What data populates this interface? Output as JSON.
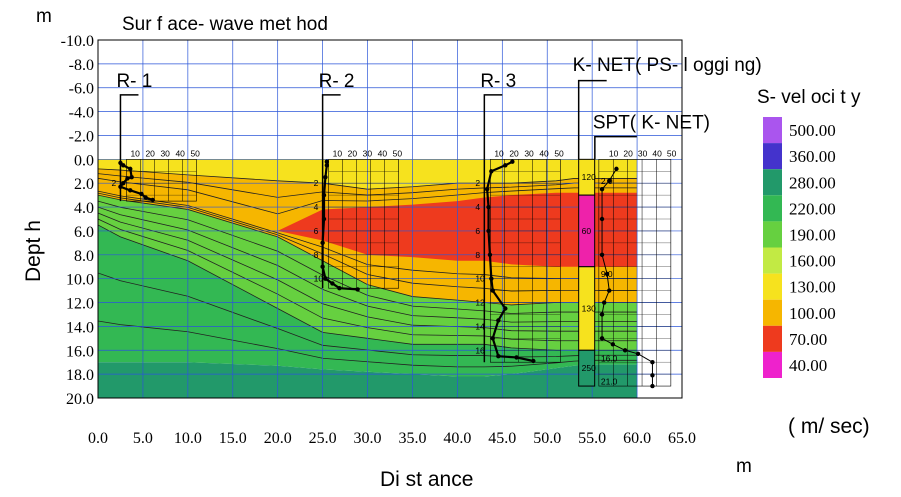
{
  "chart_data": {
    "type": "heatmap",
    "title": "Sur f ace- wave  met hod",
    "xlabel": "Di st ance",
    "ylabel": "Dept h",
    "x_unit": "m",
    "y_unit": "m",
    "xlim": [
      0,
      65
    ],
    "ylim": [
      -10,
      20
    ],
    "x_ticks": [
      "0.0",
      "5.0",
      "10.0",
      "15.0",
      "20.0",
      "25.0",
      "30.0",
      "35.0",
      "40.0",
      "45.0",
      "50.0",
      "55.0",
      "60.0",
      "65.0"
    ],
    "y_ticks": [
      "-10.0",
      "-8.0",
      "-6.0",
      "-4.0",
      "-2.0",
      "0.0",
      "2.0",
      "4.0",
      "6.0",
      "8.0",
      "10.0",
      "12.0",
      "14.0",
      "16.0",
      "18.0",
      "20.0"
    ],
    "grid": true,
    "legend": {
      "title": "S- vel oci t y",
      "unit": "( m/ sec)",
      "placement": "right",
      "levels": [
        {
          "label": "500.00",
          "color": "#aa55ee"
        },
        {
          "label": "360.00",
          "color": "#4433cc"
        },
        {
          "label": "280.00",
          "color": "#22996a"
        },
        {
          "label": "220.00",
          "color": "#33b853"
        },
        {
          "label": "190.00",
          "color": "#66d040"
        },
        {
          "label": "160.00",
          "color": "#c2ea44"
        },
        {
          "label": "130.00",
          "color": "#f6e21e"
        },
        {
          "label": "100.00",
          "color": "#f6b600"
        },
        {
          "label": "70.00",
          "color": "#ee3a1e"
        },
        {
          "label": "40.00",
          "color": "#ee22cc"
        }
      ]
    },
    "velocity_model": {
      "x": [
        0,
        2.5,
        10,
        20,
        25,
        30,
        35,
        40,
        43,
        46,
        51,
        53,
        55,
        60
      ],
      "boundary_130": [
        0.8,
        0.9,
        1.3,
        1.8,
        2.0,
        2.5,
        2.3,
        2.0,
        2.0,
        2.0,
        1.8,
        1.6,
        1.6,
        1.6
      ],
      "red_top": [
        null,
        null,
        null,
        6.0,
        4.2,
        4.0,
        3.8,
        3.5,
        3.2,
        3.0,
        2.8,
        2.8,
        2.8,
        2.8
      ],
      "red_bottom": [
        null,
        null,
        null,
        6.0,
        6.8,
        8.0,
        8.2,
        8.5,
        8.5,
        8.8,
        9.0,
        9.0,
        9.0,
        9.0
      ],
      "boundary_160": [
        3.0,
        3.4,
        4.2,
        6.5,
        8.5,
        10.5,
        11.5,
        11.8,
        12.0,
        12.2,
        12.0,
        12.0,
        12.0,
        12.0
      ],
      "boundary_220": [
        5.5,
        6.5,
        8.5,
        12.5,
        14.5,
        15.0,
        15.5,
        15.5,
        15.5,
        15.8,
        16.0,
        16.0,
        16.0,
        16.0
      ],
      "boundary_280": [
        17.0,
        17.0,
        17.0,
        17.3,
        17.6,
        17.8,
        18.0,
        18.2,
        18.2,
        18.0,
        17.5,
        17.3,
        17.2,
        17.2
      ]
    },
    "annotations": [
      {
        "text": "R- 1",
        "x": 2.5
      },
      {
        "text": "R- 2",
        "x": 25.0
      },
      {
        "text": "R- 3",
        "x": 43.0
      },
      {
        "text": "K- NET( PS- l oggi ng)",
        "x": 53.5
      },
      {
        "text": "SPT( K- NET)",
        "x": 55.5
      }
    ],
    "boreholes": [
      {
        "name": "R-1",
        "x": 2.5,
        "bottom": 3.5,
        "depth_labels": [
          "2"
        ],
        "profile": [
          [
            0.3,
            0.0
          ],
          [
            0.5,
            0.2
          ],
          [
            0.8,
            0.7
          ],
          [
            1.5,
            0.8
          ],
          [
            1.6,
            0.5
          ],
          [
            2.0,
            0.2
          ],
          [
            2.3,
            0.0
          ],
          [
            2.6,
            0.7
          ],
          [
            2.9,
            1.5
          ],
          [
            3.2,
            1.8
          ],
          [
            3.4,
            2.3
          ]
        ]
      },
      {
        "name": "R-2",
        "x": 25.0,
        "bottom": 10.8,
        "depth_labels": [
          "2",
          "4",
          "6",
          "8",
          "10"
        ],
        "profile": [
          [
            0.2,
            0.3
          ],
          [
            0.5,
            0.3
          ],
          [
            1.5,
            0.2
          ],
          [
            3,
            0.1
          ],
          [
            5,
            0.1
          ],
          [
            7,
            0.0
          ],
          [
            9,
            0.0
          ],
          [
            10,
            0.2
          ],
          [
            10.4,
            0.7
          ],
          [
            10.8,
            1.2
          ],
          [
            10.9,
            2.5
          ]
        ]
      },
      {
        "name": "R-3",
        "x": 43.0,
        "bottom": 17.0,
        "depth_labels": [
          "2",
          "4",
          "6",
          "8",
          "10",
          "12",
          "14",
          "16"
        ],
        "profile": [
          [
            0.2,
            2.0
          ],
          [
            0.5,
            1.5
          ],
          [
            1.0,
            0.5
          ],
          [
            2.5,
            0.2
          ],
          [
            4,
            0.3
          ],
          [
            6,
            0.3
          ],
          [
            8,
            0.4
          ],
          [
            10,
            0.5
          ],
          [
            11,
            0.6
          ],
          [
            12.5,
            1.5
          ],
          [
            13.5,
            1.0
          ],
          [
            15,
            0.6
          ],
          [
            16.5,
            1.0
          ],
          [
            16.6,
            2.3
          ],
          [
            16.9,
            3.5
          ]
        ]
      }
    ],
    "k_net_log": {
      "x": 53.5,
      "layers": [
        {
          "top": 0,
          "bottom": 3,
          "label": "120",
          "color": "#f6e21e"
        },
        {
          "top": 3,
          "bottom": 9,
          "label": "60",
          "color": "#ee22aa"
        },
        {
          "top": 9,
          "bottom": 16,
          "label": "130",
          "color": "#f6e21e"
        },
        {
          "top": 16,
          "bottom": 19,
          "label": "250",
          "color": "#22996a"
        }
      ]
    },
    "spt_k_net": {
      "x": 55.3,
      "labels": [
        {
          "text": "2.0",
          "d": 1.8
        },
        {
          "text": "9.0",
          "d": 9.6
        },
        {
          "text": "16.0",
          "d": 16.7
        },
        {
          "text": "21.0",
          "d": 18.6
        }
      ],
      "profile": [
        [
          0.8,
          3.0
        ],
        [
          1.8,
          2.0
        ],
        [
          2.5,
          1.0
        ],
        [
          5,
          1.0
        ],
        [
          8,
          1.0
        ],
        [
          9.6,
          1.7
        ],
        [
          11,
          2.0
        ],
        [
          12,
          1.3
        ],
        [
          13,
          1.0
        ],
        [
          15,
          1.0
        ],
        [
          15.5,
          2.5
        ],
        [
          16,
          4.2
        ],
        [
          16.3,
          6.0
        ],
        [
          17,
          8.0
        ],
        [
          18.1,
          8.0
        ],
        [
          19,
          8.0
        ]
      ]
    }
  }
}
